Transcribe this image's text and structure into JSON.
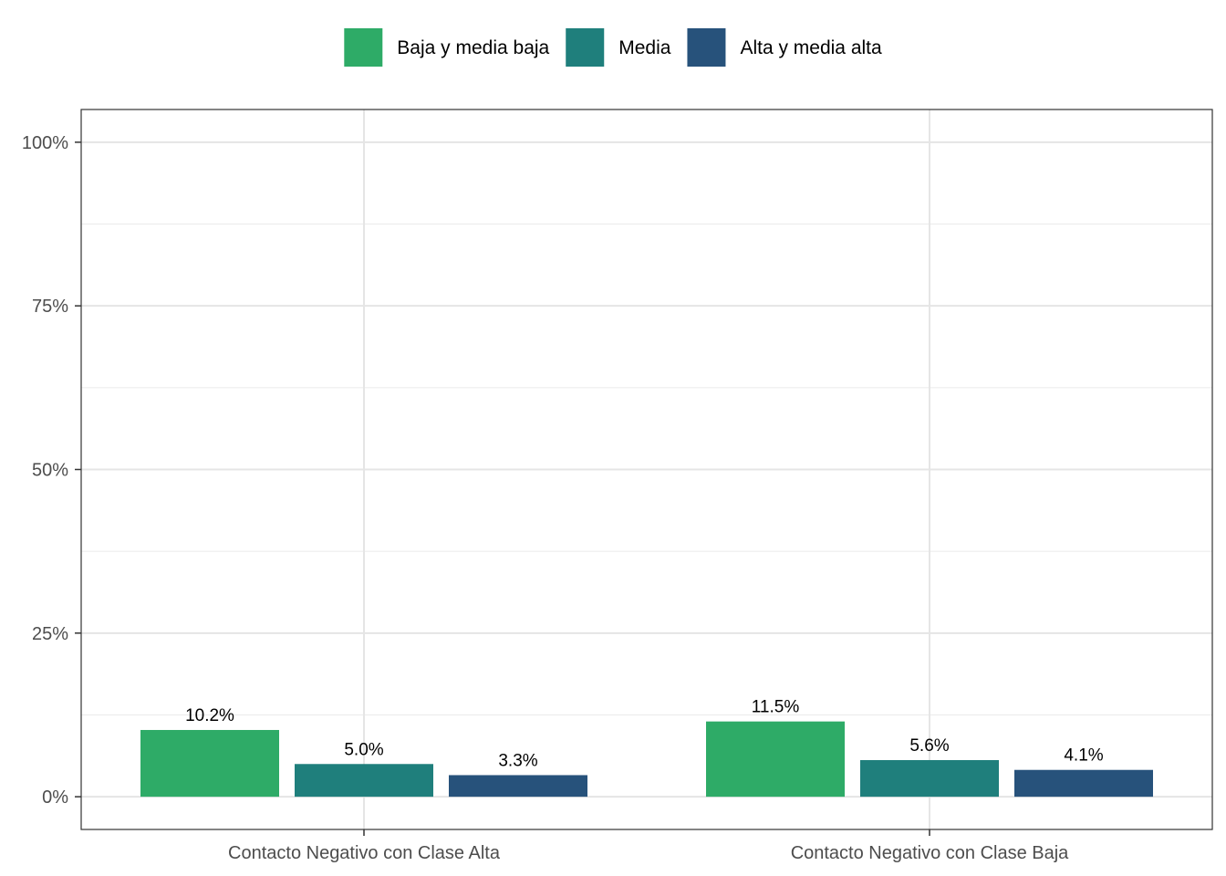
{
  "chart_data": {
    "type": "bar",
    "categories": [
      "Contacto Negativo con Clase Alta",
      "Contacto Negativo con Clase Baja"
    ],
    "series": [
      {
        "name": "Baja y media baja",
        "color": "#2EAB67",
        "values": [
          10.2,
          11.5
        ],
        "labels": [
          "10.2%",
          "11.5%"
        ]
      },
      {
        "name": "Media",
        "color": "#1F7F7C",
        "values": [
          5.0,
          5.6
        ],
        "labels": [
          "5.0%",
          "5.6%"
        ]
      },
      {
        "name": "Alta y media alta",
        "color": "#27527B",
        "values": [
          3.3,
          4.1
        ],
        "labels": [
          "3.3%",
          "4.1%"
        ]
      }
    ],
    "yticks": [
      0,
      25,
      50,
      75,
      100
    ],
    "ytick_labels": [
      "0%",
      "25%",
      "50%",
      "75%",
      "100%"
    ],
    "ylim": [
      -5,
      105
    ],
    "legend_position": "top",
    "grid": true,
    "title": "",
    "xlabel": "",
    "ylabel": ""
  }
}
